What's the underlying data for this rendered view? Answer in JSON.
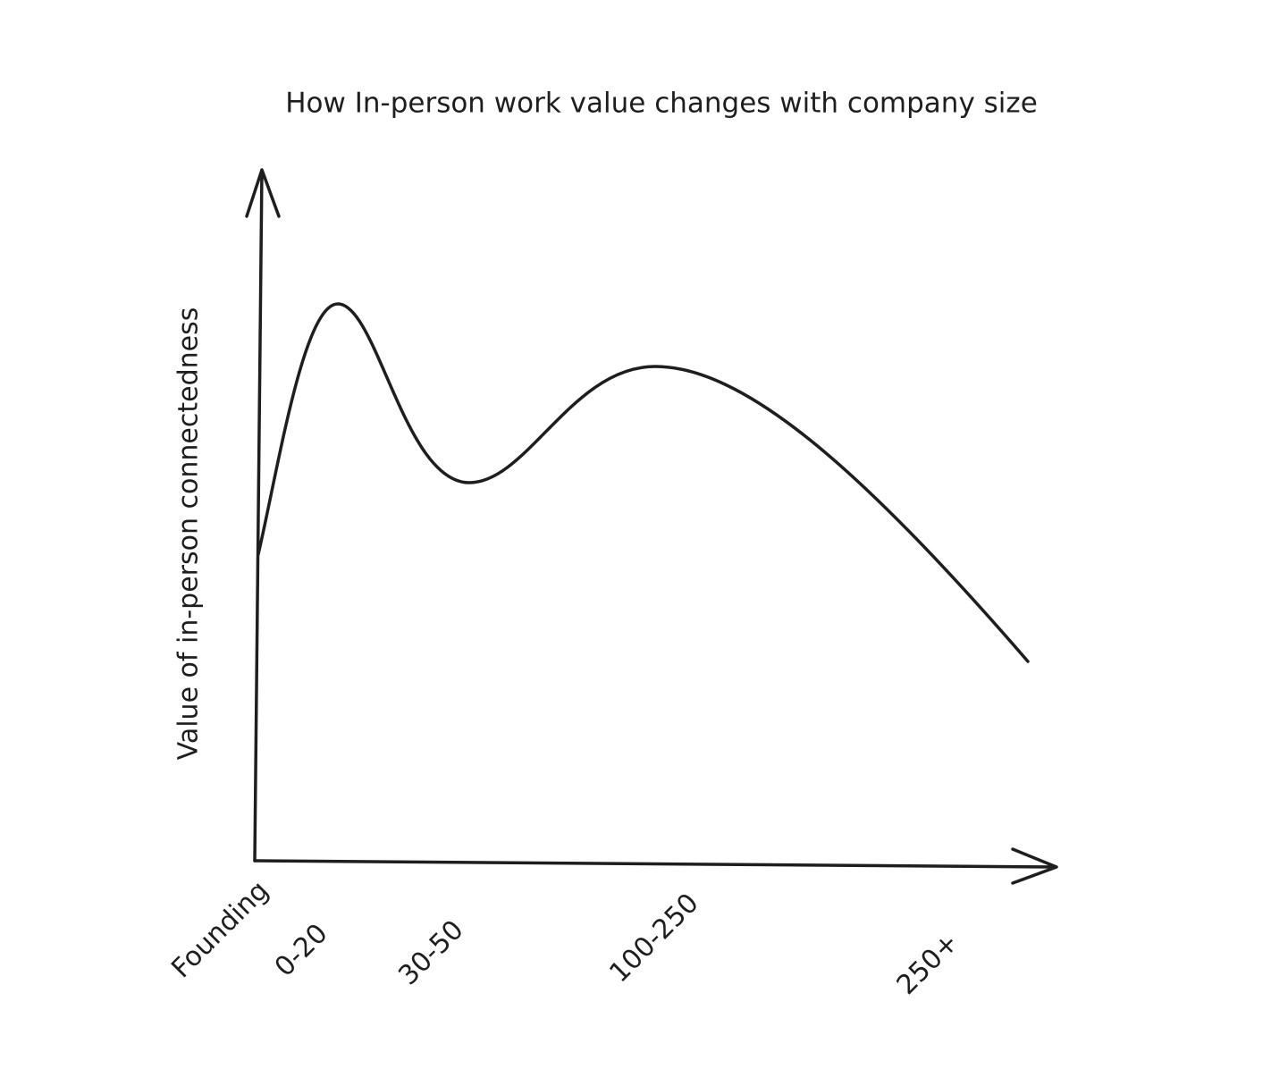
{
  "chart_data": {
    "type": "line",
    "title": "How In-person work value changes with company size",
    "y_label": "Value of in-person connectedness",
    "categories": [
      "Founding",
      "0-20",
      "30-50",
      "100-250",
      "250+"
    ]
  }
}
